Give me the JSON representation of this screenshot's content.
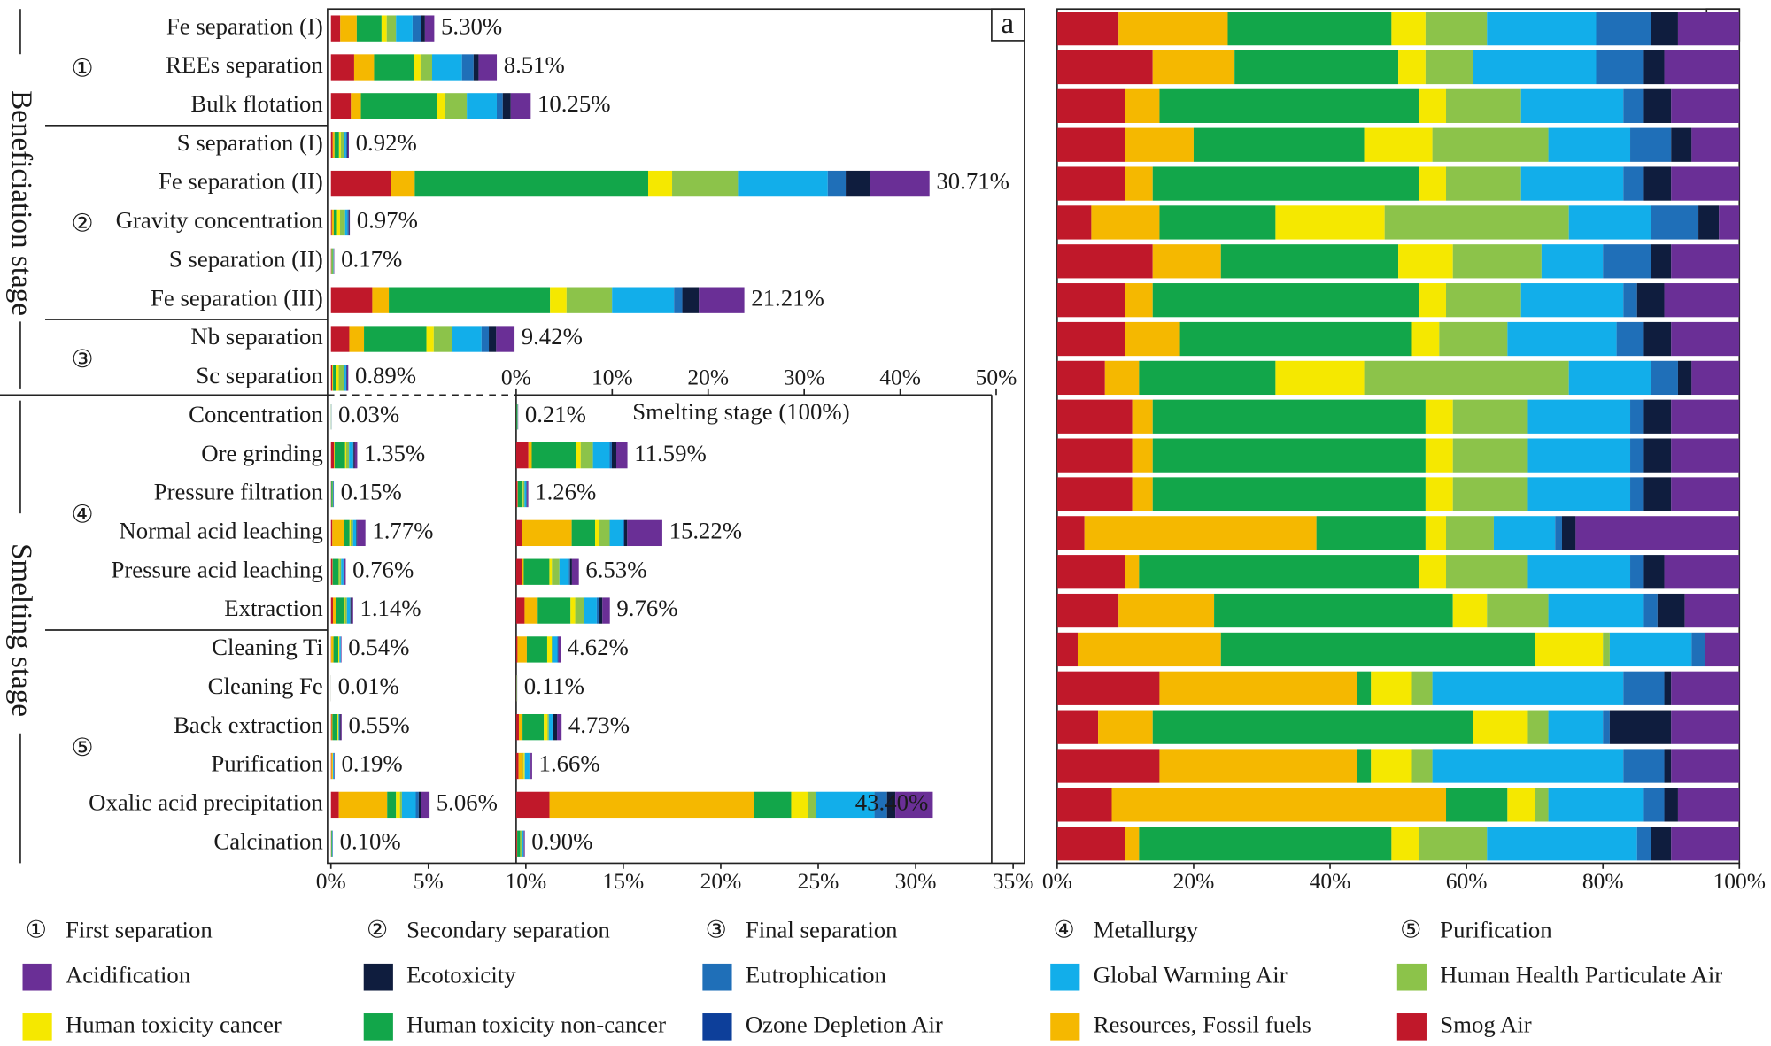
{
  "chart_data": [
    {
      "type": "bar",
      "orientation": "horizontal",
      "panel": "a",
      "stages": [
        "Beneficiation stage",
        "Smelting stage"
      ],
      "groups": [
        {
          "symbol": "①",
          "name": "First separation"
        },
        {
          "symbol": "②",
          "name": "Secondary separation"
        },
        {
          "symbol": "③",
          "name": "Final separation"
        },
        {
          "symbol": "④",
          "name": "Metallurgy"
        },
        {
          "symbol": "⑤",
          "name": "Purification"
        }
      ],
      "categories": [
        "Fe separation (I)",
        "REEs separation",
        "Bulk flotation",
        "S separation (I)",
        "Fe separation (II)",
        "Gravity concentration",
        "S separation (II)",
        "Fe separation (III)",
        "Nb separation",
        "Sc separation",
        "Concentration",
        "Ore grinding",
        "Pressure filtration",
        "Normal acid leaching",
        "Pressure acid leaching",
        "Extraction",
        "Cleaning Ti",
        "Cleaning Fe",
        "Back extraction",
        "Purification",
        "Oxalic acid precipitation",
        "Calcination"
      ],
      "totals": [
        5.3,
        8.51,
        10.25,
        0.92,
        30.71,
        0.97,
        0.17,
        21.21,
        9.42,
        0.89,
        0.03,
        1.35,
        0.15,
        1.77,
        0.76,
        1.14,
        0.54,
        0.01,
        0.55,
        0.19,
        5.06,
        0.1
      ],
      "total_labels": [
        "5.30%",
        "8.51%",
        "10.25%",
        "0.92%",
        "30.71%",
        "0.97%",
        "0.17%",
        "21.21%",
        "9.42%",
        "0.89%",
        "0.03%",
        "1.35%",
        "0.15%",
        "1.77%",
        "0.76%",
        "1.14%",
        "0.54%",
        "0.01%",
        "0.55%",
        "0.19%",
        "5.06%",
        "0.10%"
      ],
      "xlim": [
        0,
        35
      ],
      "xticks": [
        {
          "value": 0,
          "label": "0%"
        },
        {
          "value": 5,
          "label": "5%"
        },
        {
          "value": 10,
          "label": "10%"
        },
        {
          "value": 15,
          "label": "15%"
        },
        {
          "value": 20,
          "label": "20%"
        },
        {
          "value": 25,
          "label": "25%"
        },
        {
          "value": 30,
          "label": "30%"
        },
        {
          "value": 35,
          "label": "35%"
        }
      ],
      "inset": {
        "title": "Smelting stage (100%)",
        "totals": [
          0.21,
          11.59,
          1.26,
          15.22,
          6.53,
          9.76,
          4.62,
          0.11,
          4.73,
          1.66,
          43.4,
          0.9
        ],
        "total_labels": [
          "0.21%",
          "11.59%",
          "1.26%",
          "15.22%",
          "6.53%",
          "9.76%",
          "4.62%",
          "0.11%",
          "4.73%",
          "1.66%",
          "43.40%",
          "0.90%"
        ],
        "xlim": [
          0,
          50
        ],
        "xticks": [
          {
            "value": 0,
            "label": "0%"
          },
          {
            "value": 10,
            "label": "10%"
          },
          {
            "value": 20,
            "label": "20%"
          },
          {
            "value": 30,
            "label": "30%"
          },
          {
            "value": 40,
            "label": "40%"
          },
          {
            "value": 50,
            "label": "50%"
          }
        ]
      }
    },
    {
      "type": "bar",
      "orientation": "horizontal",
      "stacked": true,
      "panel": "b",
      "xlim": [
        0,
        100
      ],
      "xticks": [
        {
          "value": 0,
          "label": "0%"
        },
        {
          "value": 20,
          "label": "20%"
        },
        {
          "value": 40,
          "label": "40%"
        },
        {
          "value": 60,
          "label": "60%"
        },
        {
          "value": 80,
          "label": "80%"
        },
        {
          "value": 100,
          "label": "100%"
        }
      ],
      "series": [
        {
          "name": "Smog Air",
          "color": "#c0182a",
          "values": [
            9,
            14,
            10,
            10,
            10,
            5,
            14,
            10,
            10,
            7,
            11,
            11,
            11,
            4,
            10,
            9,
            3,
            15,
            6,
            15,
            8,
            10
          ]
        },
        {
          "name": "Resources, Fossil fuels",
          "color": "#f5b800",
          "values": [
            16,
            12,
            5,
            10,
            4,
            10,
            10,
            4,
            8,
            5,
            3,
            3,
            3,
            34,
            2,
            14,
            21,
            29,
            8,
            29,
            49,
            2
          ]
        },
        {
          "name": "Human toxicity non-cancer",
          "color": "#12a64a",
          "values": [
            24,
            24,
            38,
            25,
            39,
            17,
            26,
            39,
            34,
            20,
            40,
            40,
            40,
            16,
            41,
            35,
            46,
            2,
            47,
            2,
            9,
            37
          ]
        },
        {
          "name": "Human toxicity cancer",
          "color": "#f5e800",
          "values": [
            5,
            4,
            4,
            10,
            4,
            16,
            8,
            4,
            4,
            13,
            4,
            4,
            4,
            3,
            4,
            5,
            10,
            6,
            8,
            6,
            4,
            4
          ]
        },
        {
          "name": "Human Health Particulate Air",
          "color": "#8cc34a",
          "values": [
            9,
            7,
            11,
            17,
            11,
            27,
            13,
            11,
            10,
            30,
            11,
            11,
            11,
            7,
            12,
            9,
            1,
            3,
            3,
            3,
            2,
            10
          ]
        },
        {
          "name": "Global Warming Air",
          "color": "#12aeea",
          "values": [
            16,
            18,
            15,
            12,
            15,
            12,
            9,
            15,
            16,
            12,
            15,
            15,
            15,
            9,
            15,
            14,
            12,
            28,
            8,
            28,
            14,
            22
          ]
        },
        {
          "name": "Eutrophication",
          "color": "#1f6fb8",
          "values": [
            8,
            7,
            3,
            6,
            3,
            7,
            7,
            2,
            4,
            4,
            2,
            2,
            2,
            1,
            2,
            2,
            2,
            6,
            1,
            6,
            3,
            2
          ]
        },
        {
          "name": "Ozone Depletion Air",
          "color": "#0d3f9a",
          "values": [
            0,
            0,
            0,
            0,
            0,
            0,
            0,
            0,
            0,
            0,
            0,
            0,
            0,
            0,
            0,
            0,
            0,
            0,
            0,
            0,
            0,
            0
          ]
        },
        {
          "name": "Ecotoxicity",
          "color": "#0f1d3e",
          "values": [
            4,
            3,
            4,
            3,
            4,
            3,
            3,
            4,
            4,
            2,
            4,
            4,
            4,
            2,
            3,
            4,
            0,
            1,
            9,
            1,
            2,
            3
          ]
        },
        {
          "name": "Acidification",
          "color": "#6a2f96",
          "values": [
            9,
            11,
            10,
            7,
            10,
            3,
            10,
            11,
            10,
            7,
            10,
            10,
            10,
            24,
            11,
            8,
            5,
            10,
            10,
            10,
            9,
            10
          ]
        }
      ]
    }
  ]
}
